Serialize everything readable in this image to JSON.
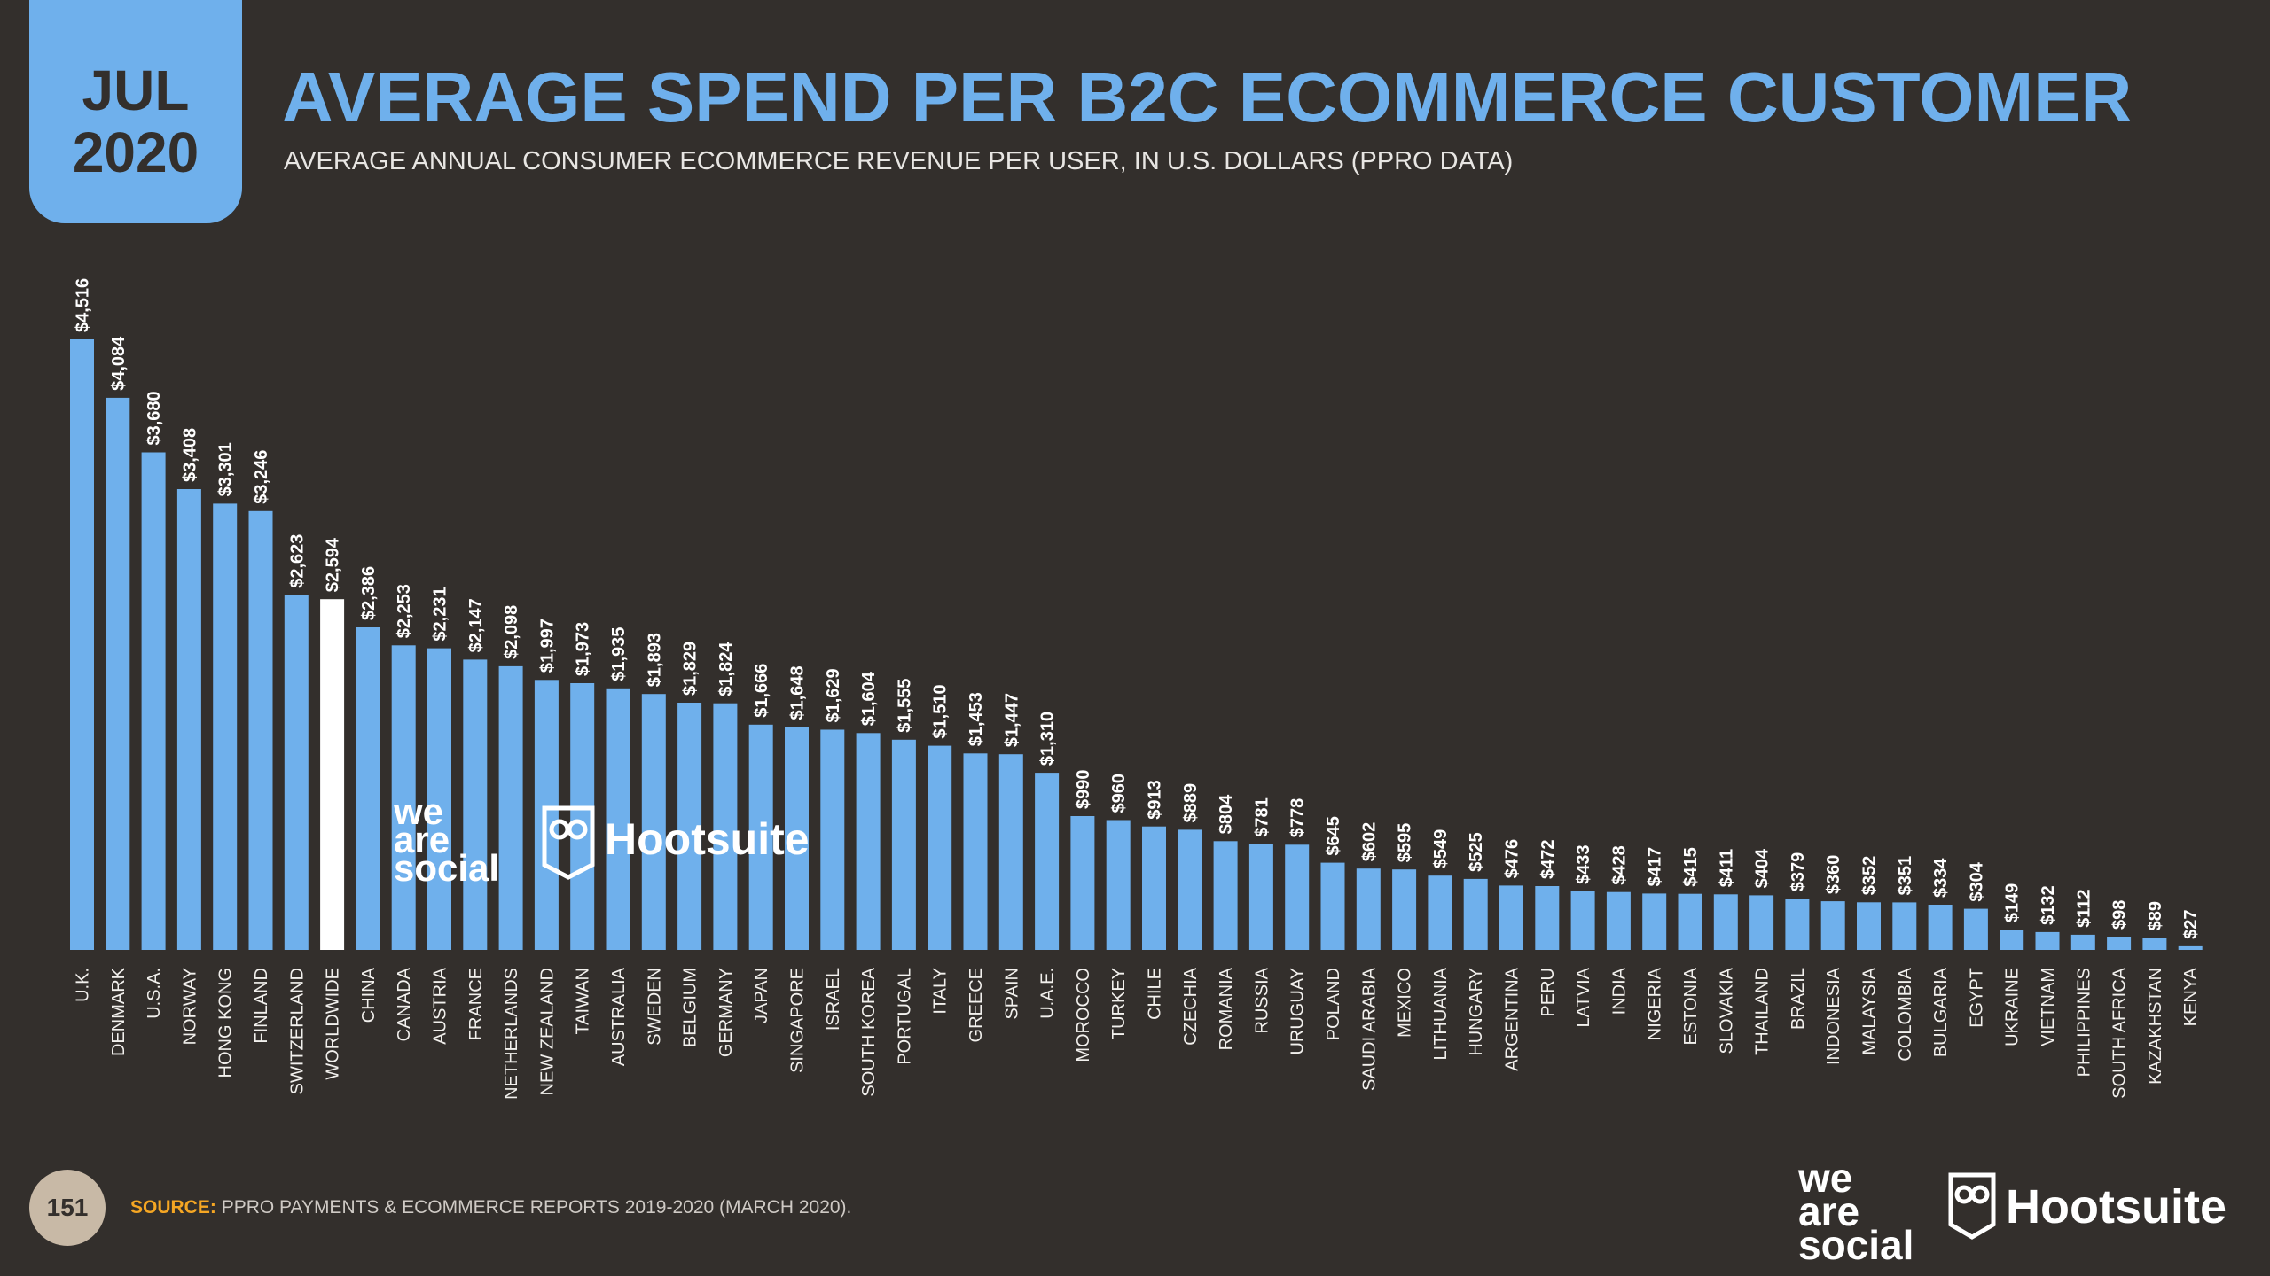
{
  "header": {
    "month": "JUL",
    "year": "2020",
    "title": "AVERAGE SPEND PER B2C ECOMMERCE CUSTOMER",
    "subtitle": "AVERAGE ANNUAL CONSUMER ECOMMERCE REVENUE PER USER, IN U.S. DOLLARS (PPRO DATA)"
  },
  "colors": {
    "background": "#332f2c",
    "accent": "#6fb0ec",
    "highlight": "#ffffff",
    "source_label": "#f5a623"
  },
  "watermark": {
    "we_are_social": [
      "we",
      "are",
      "social"
    ],
    "hootsuite": "Hootsuite"
  },
  "chart_data": {
    "type": "bar",
    "title": "AVERAGE SPEND PER B2C ECOMMERCE CUSTOMER",
    "xlabel": "",
    "ylabel": "U.S. DOLLARS",
    "ylim": [
      0,
      4516
    ],
    "highlight_category": "WORLDWIDE",
    "categories": [
      "U.K.",
      "DENMARK",
      "U.S.A.",
      "NORWAY",
      "HONG KONG",
      "FINLAND",
      "SWITZERLAND",
      "WORLDWIDE",
      "CHINA",
      "CANADA",
      "AUSTRIA",
      "FRANCE",
      "NETHERLANDS",
      "NEW ZEALAND",
      "TAIWAN",
      "AUSTRALIA",
      "SWEDEN",
      "BELGIUM",
      "GERMANY",
      "JAPAN",
      "SINGAPORE",
      "ISRAEL",
      "SOUTH KOREA",
      "PORTUGAL",
      "ITALY",
      "GREECE",
      "SPAIN",
      "U.A.E.",
      "MOROCCO",
      "TURKEY",
      "CHILE",
      "CZECHIA",
      "ROMANIA",
      "RUSSIA",
      "URUGUAY",
      "POLAND",
      "SAUDI ARABIA",
      "MEXICO",
      "LITHUANIA",
      "HUNGARY",
      "ARGENTINA",
      "PERU",
      "LATVIA",
      "INDIA",
      "NIGERIA",
      "ESTONIA",
      "SLOVAKIA",
      "THAILAND",
      "BRAZIL",
      "INDONESIA",
      "MALAYSIA",
      "COLOMBIA",
      "BULGARIA",
      "EGYPT",
      "UKRAINE",
      "VIETNAM",
      "PHILIPPINES",
      "SOUTH AFRICA",
      "KAZAKHSTAN",
      "KENYA"
    ],
    "values": [
      4516,
      4084,
      3680,
      3408,
      3301,
      3246,
      2623,
      2594,
      2386,
      2253,
      2231,
      2147,
      2098,
      1997,
      1973,
      1935,
      1893,
      1829,
      1824,
      1666,
      1648,
      1629,
      1604,
      1555,
      1510,
      1453,
      1447,
      1310,
      990,
      960,
      913,
      889,
      804,
      781,
      778,
      645,
      602,
      595,
      549,
      525,
      476,
      472,
      433,
      428,
      417,
      415,
      411,
      404,
      379,
      360,
      352,
      351,
      334,
      304,
      149,
      132,
      112,
      98,
      89,
      27
    ],
    "value_labels": [
      "$4,516",
      "$4,084",
      "$3,680",
      "$3,408",
      "$3,301",
      "$3,246",
      "$2,623",
      "$2,594",
      "$2,386",
      "$2,253",
      "$2,231",
      "$2,147",
      "$2,098",
      "$1,997",
      "$1,973",
      "$1,935",
      "$1,893",
      "$1,829",
      "$1,824",
      "$1,666",
      "$1,648",
      "$1,629",
      "$1,604",
      "$1,555",
      "$1,510",
      "$1,453",
      "$1,447",
      "$1,310",
      "$990",
      "$960",
      "$913",
      "$889",
      "$804",
      "$781",
      "$778",
      "$645",
      "$602",
      "$595",
      "$549",
      "$525",
      "$476",
      "$472",
      "$433",
      "$428",
      "$417",
      "$415",
      "$411",
      "$404",
      "$379",
      "$360",
      "$352",
      "$351",
      "$334",
      "$304",
      "$149",
      "$132",
      "$112",
      "$98",
      "$89",
      "$27"
    ]
  },
  "footer": {
    "page_number": "151",
    "source_label": "SOURCE:",
    "source_text": "PPRO PAYMENTS & ECOMMERCE REPORTS 2019-2020 (MARCH 2020).",
    "brand_we_are_social": [
      "we",
      "are",
      "social"
    ],
    "brand_hootsuite": "Hootsuite"
  }
}
